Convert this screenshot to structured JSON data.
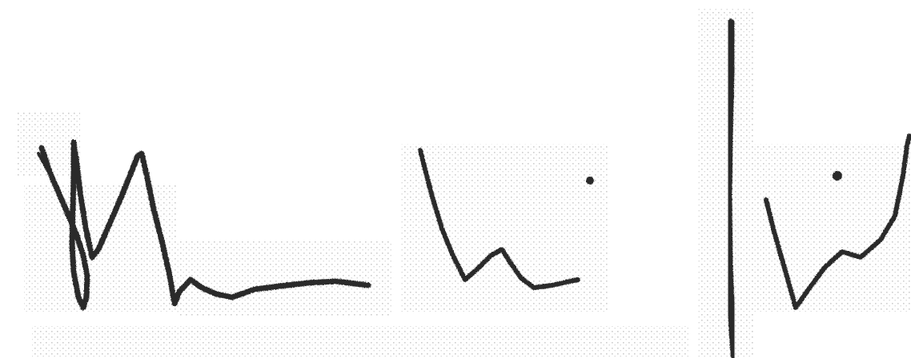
{
  "image": {
    "background": "#ffffff",
    "ink_color": "#2b2b2b",
    "noise_color": "#bdbdbd"
  }
}
